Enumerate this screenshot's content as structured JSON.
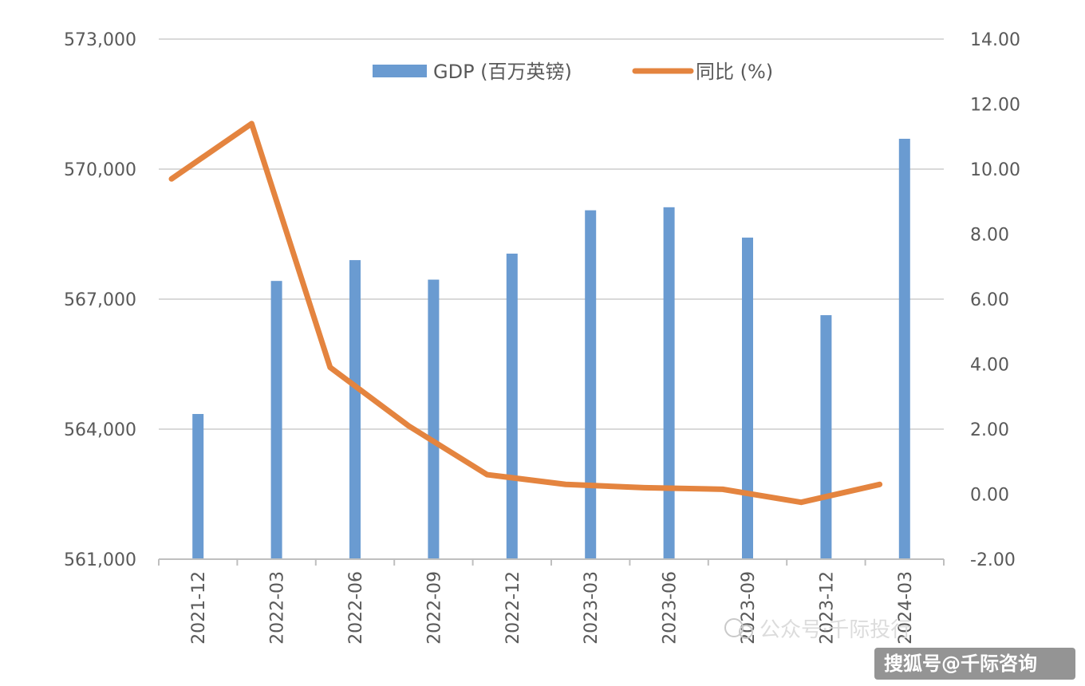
{
  "chart_data": {
    "type": "bar",
    "categories": [
      "2021-12",
      "2022-03",
      "2022-06",
      "2022-09",
      "2022-12",
      "2023-03",
      "2023-06",
      "2023-09",
      "2023-12",
      "2024-03"
    ],
    "series": [
      {
        "name": "GDP (百万英镑)",
        "type": "bar",
        "axis": "left",
        "color": "#6a9bd1",
        "values": [
          564350,
          567420,
          567900,
          567450,
          568050,
          569050,
          569120,
          568420,
          566630,
          570700
        ]
      },
      {
        "name": "同比 (%)",
        "type": "line",
        "axis": "right",
        "color": "#e4843f",
        "values": [
          9.7,
          11.4,
          3.9,
          2.1,
          0.6,
          0.3,
          0.2,
          0.15,
          -0.25,
          0.3
        ]
      }
    ],
    "y_left": {
      "range": [
        561000,
        573000
      ],
      "ticks": [
        "561,000",
        "564,000",
        "567,000",
        "570,000",
        "573,000"
      ]
    },
    "y_right": {
      "range": [
        -2,
        14
      ],
      "ticks": [
        "-2.00",
        "0.00",
        "2.00",
        "4.00",
        "6.00",
        "8.00",
        "10.00",
        "12.00",
        "14.00"
      ]
    },
    "grid": true,
    "legend_position": "top-center"
  },
  "watermark": {
    "text": "搜狐号@千际咨询",
    "faint_text": "公众号·千际投行"
  }
}
